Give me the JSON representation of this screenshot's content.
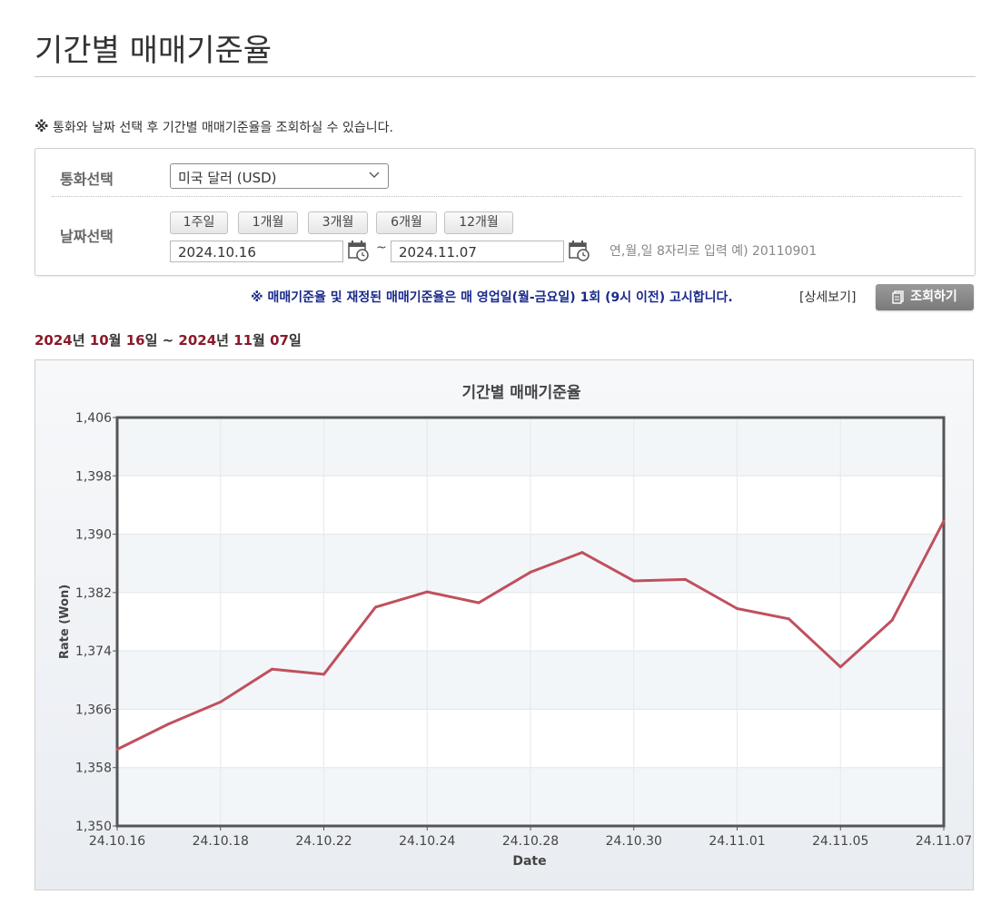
{
  "page": {
    "title": "기간별 매매기준율",
    "notice_mark": "※",
    "notice": " 통화와 날짜 선택 후 기간별 매매기준율을 조회하실 수 있습니다."
  },
  "form": {
    "currency_label": "통화선택",
    "currency_value": "미국 달러 (USD)",
    "date_label": "날짜선택",
    "period_buttons": [
      "1주일",
      "1개월",
      "3개월",
      "6개월",
      "12개월"
    ],
    "start_date": "2024.10.16",
    "tilde": "~",
    "end_date": "2024.11.07",
    "hint": "연,월,일 8자리로 입력 예) 20110901"
  },
  "info": {
    "bold_notice": "※ 매매기준율 및 재정된 매매기준율은 매 영업일(월-금요일) 1회 (9시 이전) 고시합니다.",
    "detail_link": "[상세보기]",
    "query_button": "조회하기"
  },
  "range": {
    "y1": "2024",
    "t_year1": "년 ",
    "m1": "10",
    "t_month1": "월 ",
    "d1": "16",
    "t_day1": "일 ~ ",
    "y2": "2024",
    "t_year2": "년 ",
    "m2": "11",
    "t_month2": "월 ",
    "d2": "07",
    "t_day2": "일"
  },
  "colors": {
    "line": "#c0505e",
    "range_number": "#8a1a2a",
    "notice_blue": "#1a2a8a"
  },
  "chart_data": {
    "type": "line",
    "title": "기간별 매매기준율",
    "xlabel": "Date",
    "ylabel": "Rate (Won)",
    "ylim": [
      1350,
      1406
    ],
    "yticks": [
      1350,
      1358,
      1366,
      1374,
      1382,
      1390,
      1398,
      1406
    ],
    "ytick_labels": [
      "1,350",
      "1,358",
      "1,366",
      "1,374",
      "1,382",
      "1,390",
      "1,398",
      "1,406"
    ],
    "x": [
      "24.10.16",
      "24.10.17",
      "24.10.18",
      "24.10.21",
      "24.10.22",
      "24.10.23",
      "24.10.24",
      "24.10.25",
      "24.10.28",
      "24.10.29",
      "24.10.30",
      "24.10.31",
      "24.11.01",
      "24.11.04",
      "24.11.05",
      "24.11.06",
      "24.11.07"
    ],
    "xtick_labels": [
      "24.10.16",
      "24.10.18",
      "24.10.22",
      "24.10.24",
      "24.10.28",
      "24.10.30",
      "24.11.01",
      "24.11.05",
      "24.11.07"
    ],
    "series": [
      {
        "values": [
          1360.5,
          1364.0,
          1367.0,
          1371.5,
          1370.8,
          1380.0,
          1382.1,
          1380.6,
          1384.8,
          1387.5,
          1383.6,
          1383.8,
          1379.8,
          1378.4,
          1371.8,
          1378.2,
          1391.8
        ]
      }
    ],
    "grid": true,
    "legend": "none"
  }
}
